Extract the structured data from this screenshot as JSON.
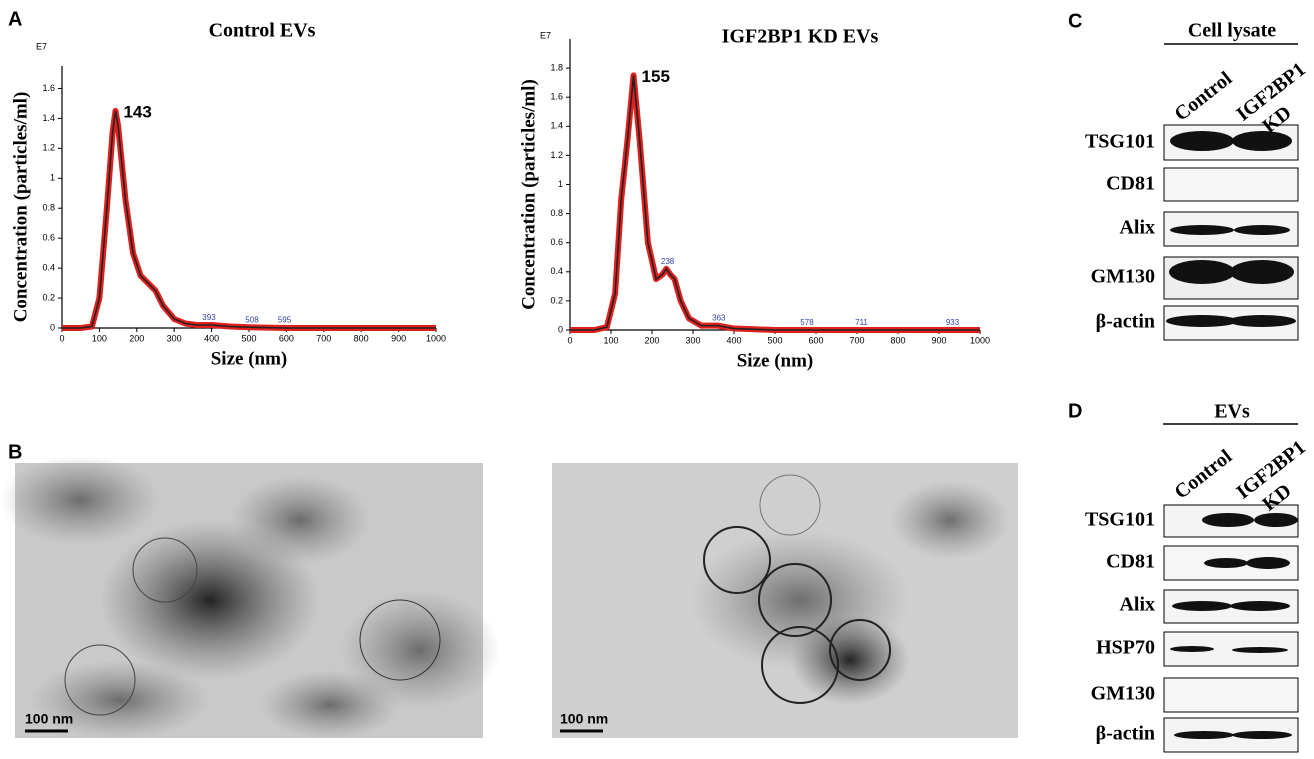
{
  "chart_data": [
    {
      "type": "line",
      "title": "Control EVs",
      "x_label": "Size (nm)",
      "y_label": "Concentration (particles/ml)",
      "y_unit": "E7",
      "x": [
        0,
        50,
        80,
        100,
        120,
        135,
        143,
        150,
        170,
        190,
        210,
        230,
        250,
        270,
        300,
        330,
        360,
        400,
        450,
        500,
        600,
        700,
        1000
      ],
      "values": [
        0,
        0,
        0.01,
        0.2,
        0.8,
        1.3,
        1.45,
        1.35,
        0.85,
        0.5,
        0.35,
        0.3,
        0.25,
        0.15,
        0.06,
        0.03,
        0.02,
        0.02,
        0.01,
        0.005,
        0,
        0,
        0
      ],
      "color": "#222222",
      "band_color": "#e0201e",
      "annotations": [
        143,
        393,
        508,
        595
      ],
      "xlim": [
        0,
        1000
      ],
      "xticks": [
        0,
        100,
        200,
        300,
        400,
        500,
        600,
        700,
        800,
        900,
        1000
      ],
      "ylim": [
        0,
        1.75
      ],
      "yticks": [
        0,
        0.2,
        0.4,
        0.6,
        0.8,
        1.0,
        1.2,
        1.4,
        1.6
      ]
    },
    {
      "type": "line",
      "title": "IGF2BP1 KD EVs",
      "x_label": "Size (nm)",
      "y_label": "Concentration (particles/ml)",
      "y_unit": "E7",
      "x": [
        0,
        60,
        90,
        110,
        125,
        140,
        155,
        170,
        190,
        210,
        225,
        235,
        245,
        255,
        270,
        290,
        320,
        360,
        400,
        450,
        500,
        700,
        1000
      ],
      "values": [
        0,
        0,
        0.02,
        0.25,
        0.9,
        1.3,
        1.75,
        1.3,
        0.6,
        0.35,
        0.38,
        0.42,
        0.38,
        0.35,
        0.2,
        0.08,
        0.03,
        0.03,
        0.01,
        0.005,
        0,
        0,
        0
      ],
      "color": "#222222",
      "band_color": "#e0201e",
      "annotations": [
        155,
        238,
        363,
        578,
        711,
        933
      ],
      "xlim": [
        0,
        1000
      ],
      "xticks": [
        0,
        100,
        200,
        300,
        400,
        500,
        600,
        700,
        800,
        900,
        1000
      ],
      "ylim": [
        0,
        2.0
      ],
      "yticks": [
        0,
        0.2,
        0.4,
        0.6,
        0.8,
        1.0,
        1.2,
        1.4,
        1.6,
        1.8
      ]
    }
  ],
  "panels": [
    "A",
    "B",
    "C",
    "D"
  ],
  "em": {
    "scale_bar": "100 nm"
  },
  "blot_c": {
    "header": "Cell lysate",
    "columns": [
      [
        "Control"
      ],
      [
        "IGF2BP1",
        "KD"
      ]
    ],
    "rows": [
      "TSG101",
      "CD81",
      "Alix",
      "GM130",
      "β-actin"
    ]
  },
  "blot_d": {
    "header": "EVs",
    "columns": [
      [
        "Control"
      ],
      [
        "IGF2BP1",
        "KD"
      ]
    ],
    "rows": [
      "TSG101",
      "CD81",
      "Alix",
      "HSP70",
      "GM130",
      "β-actin"
    ]
  }
}
